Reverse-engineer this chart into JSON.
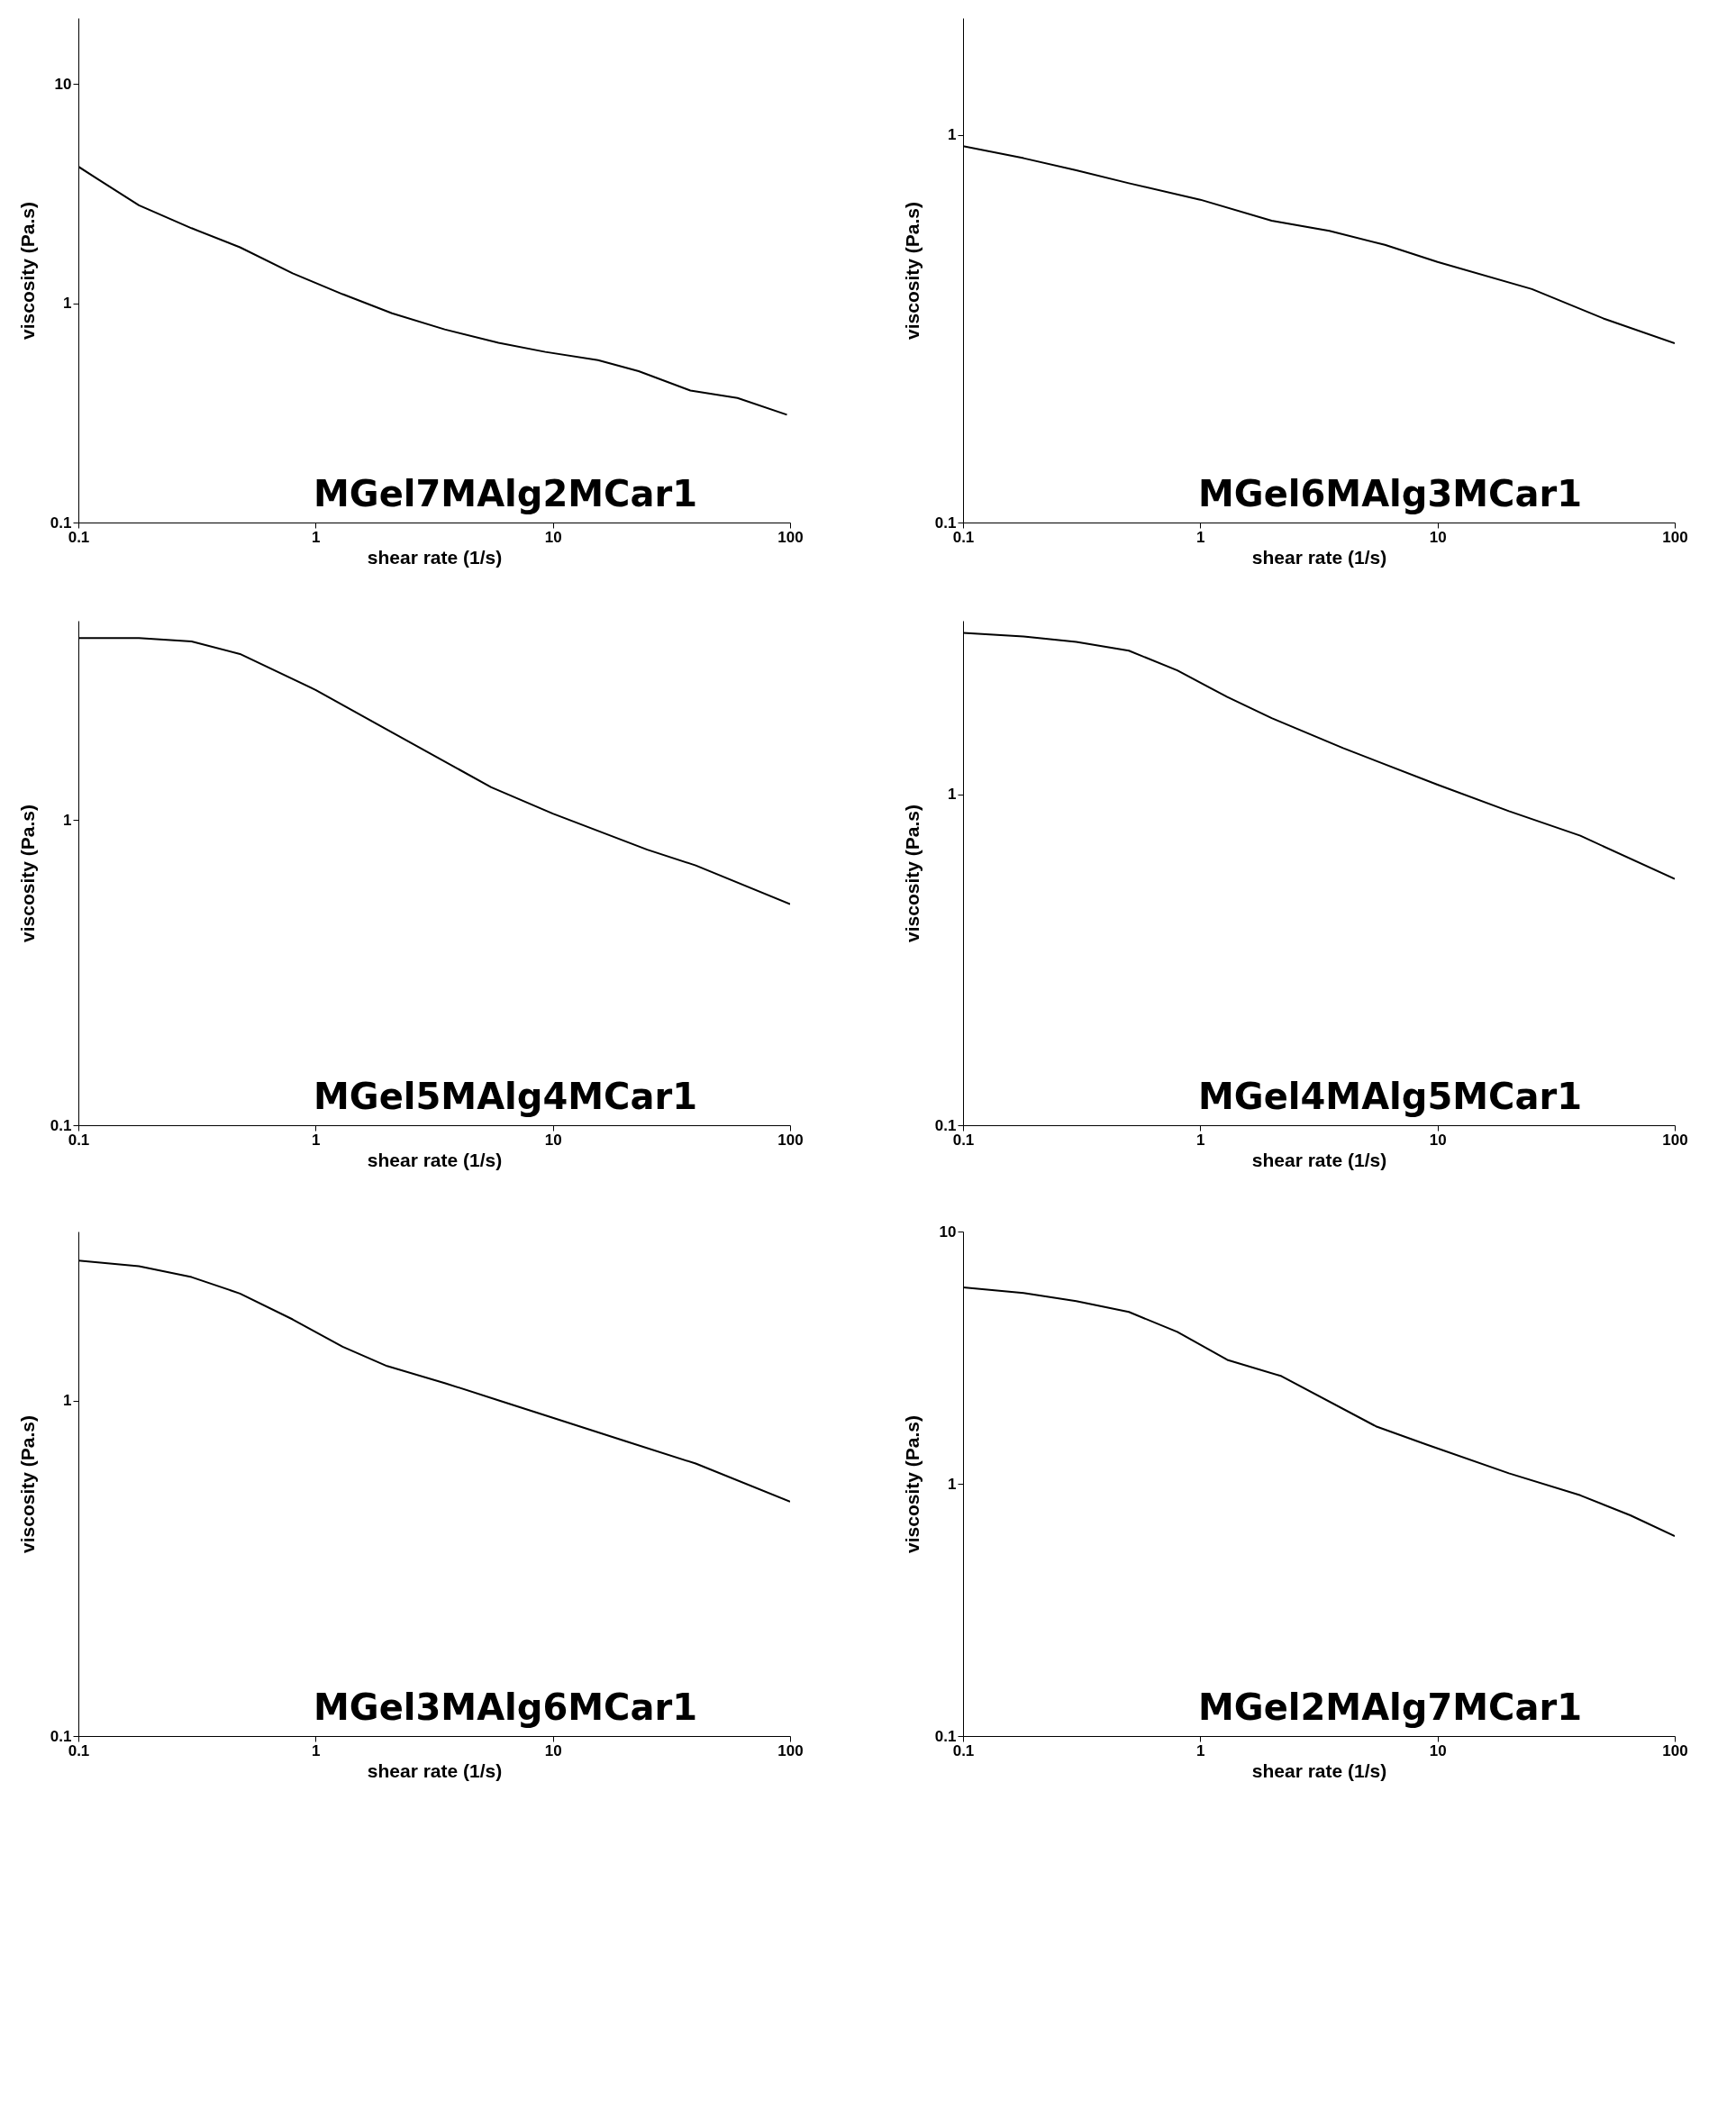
{
  "chart_data": [
    {
      "type": "line",
      "title": "MGel7MAlg2MCar1",
      "xlabel": "shear rate (1/s)",
      "ylabel": "viscosity (Pa.s)",
      "log": "xy",
      "xlim": [
        0.1,
        100
      ],
      "ylim": [
        0.1,
        20
      ],
      "xticks": [
        0.1,
        1,
        10,
        100
      ],
      "yticks": [
        0.1,
        1,
        10
      ],
      "x": [
        0.1,
        0.12,
        0.18,
        0.3,
        0.48,
        0.8,
        1.3,
        2.1,
        3.5,
        5.9,
        9.3,
        15.5,
        23,
        38,
        60,
        97
      ],
      "series": [
        {
          "color": "#000000",
          "values": [
            4.2,
            3.7,
            2.8,
            2.2,
            1.8,
            1.37,
            1.1,
            0.9,
            0.76,
            0.66,
            0.6,
            0.55,
            0.49,
            0.4,
            0.37,
            0.31
          ]
        }
      ]
    },
    {
      "type": "line",
      "title": "MGel6MAlg3MCar1",
      "xlabel": "shear rate (1/s)",
      "ylabel": "viscosity (Pa.s)",
      "log": "xy",
      "xlim": [
        0.1,
        100
      ],
      "ylim": [
        0.1,
        2
      ],
      "xticks": [
        0.1,
        1,
        10,
        100
      ],
      "yticks": [
        0.1,
        1
      ],
      "x": [
        0.1,
        0.18,
        0.3,
        0.5,
        1,
        2,
        3.5,
        6,
        10,
        25,
        50,
        100
      ],
      "series": [
        {
          "color": "#000000",
          "values": [
            0.935,
            0.87,
            0.81,
            0.75,
            0.68,
            0.6,
            0.565,
            0.52,
            0.47,
            0.4,
            0.336,
            0.29
          ]
        }
      ]
    },
    {
      "type": "line",
      "title": "MGel5MAlg4MCar1",
      "xlabel": "shear rate (1/s)",
      "ylabel": "viscosity (Pa.s)",
      "log": "xy",
      "xlim": [
        0.1,
        100
      ],
      "ylim": [
        0.1,
        4.5
      ],
      "xticks": [
        0.1,
        1,
        10,
        100
      ],
      "yticks": [
        0.1,
        1
      ],
      "x": [
        0.1,
        0.18,
        0.3,
        0.48,
        1,
        2,
        5.5,
        10,
        25,
        40,
        100
      ],
      "series": [
        {
          "color": "#000000",
          "values": [
            3.95,
            3.95,
            3.85,
            3.5,
            2.67,
            1.98,
            1.28,
            1.05,
            0.8,
            0.71,
            0.53
          ]
        }
      ]
    },
    {
      "type": "line",
      "title": "MGel4MAlg5MCar1",
      "xlabel": "shear rate (1/s)",
      "ylabel": "viscosity (Pa.s)",
      "log": "xy",
      "xlim": [
        0.1,
        100
      ],
      "ylim": [
        0.1,
        3.35
      ],
      "xticks": [
        0.1,
        1,
        10,
        100
      ],
      "yticks": [
        0.1,
        1
      ],
      "x": [
        0.1,
        0.18,
        0.3,
        0.5,
        0.8,
        1.3,
        2,
        4,
        10,
        20,
        40,
        100
      ],
      "series": [
        {
          "color": "#000000",
          "values": [
            3.08,
            3.0,
            2.89,
            2.72,
            2.37,
            1.97,
            1.7,
            1.38,
            1.07,
            0.89,
            0.75,
            0.555
          ]
        }
      ]
    },
    {
      "type": "line",
      "title": "MGel3MAlg6MCar1",
      "xlabel": "shear rate (1/s)",
      "ylabel": "viscosity (Pa.s)",
      "log": "xy",
      "xlim": [
        0.1,
        100
      ],
      "ylim": [
        0.1,
        3.2
      ],
      "xticks": [
        0.1,
        1,
        10,
        100
      ],
      "yticks": [
        0.1,
        1
      ],
      "x": [
        0.1,
        0.18,
        0.3,
        0.48,
        0.8,
        1.3,
        2,
        3.5,
        6,
        10,
        20,
        40,
        100
      ],
      "series": [
        {
          "color": "#000000",
          "values": [
            2.62,
            2.52,
            2.34,
            2.09,
            1.75,
            1.45,
            1.27,
            1.13,
            1.0,
            0.89,
            0.76,
            0.65,
            0.5
          ]
        }
      ]
    },
    {
      "type": "line",
      "title": "MGel2MAlg7MCar1",
      "xlabel": "shear rate (1/s)",
      "ylabel": "viscosity (Pa.s)",
      "log": "xy",
      "xlim": [
        0.1,
        100
      ],
      "ylim": [
        0.1,
        10
      ],
      "xticks": [
        0.1,
        1,
        10,
        100
      ],
      "yticks": [
        0.1,
        1,
        10
      ],
      "x": [
        0.1,
        0.18,
        0.3,
        0.5,
        0.8,
        1.3,
        2.2,
        5.5,
        9,
        20,
        40,
        65,
        100
      ],
      "series": [
        {
          "color": "#000000",
          "values": [
            6.0,
            5.7,
            5.3,
            4.8,
            4.0,
            3.1,
            2.67,
            1.69,
            1.43,
            1.1,
            0.9,
            0.75,
            0.62
          ]
        }
      ]
    }
  ]
}
